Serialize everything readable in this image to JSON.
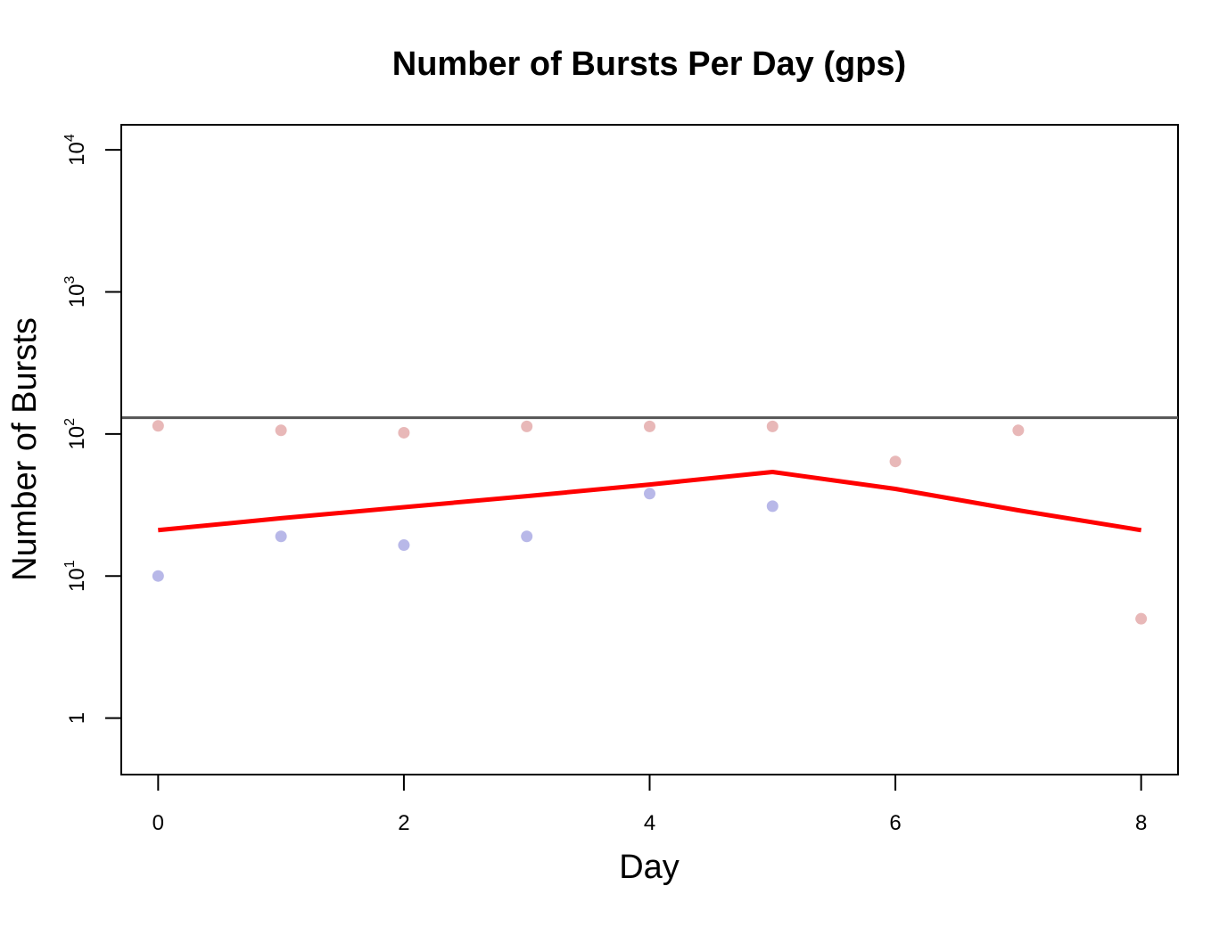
{
  "chart_data": {
    "type": "line",
    "title": "Number of Bursts Per Day (gps)",
    "xlabel": "Day",
    "ylabel": "Number of Bursts",
    "y_scale": "log",
    "xlim": [
      -0.3,
      8.3
    ],
    "ylim": [
      0.4,
      15000
    ],
    "x_ticks": [
      0,
      2,
      4,
      6,
      8
    ],
    "y_ticks": [
      {
        "value": 1,
        "base": "1",
        "exp": ""
      },
      {
        "value": 10,
        "base": "10",
        "exp": "1"
      },
      {
        "value": 100,
        "base": "10",
        "exp": "2"
      },
      {
        "value": 1000,
        "base": "10",
        "exp": "3"
      },
      {
        "value": 10000,
        "base": "10",
        "exp": "4"
      }
    ],
    "grid": false,
    "legend": "none",
    "reference_line": {
      "y": 130,
      "color": "#555555"
    },
    "series": [
      {
        "kind": "points",
        "color": "#e8b8b8",
        "x": [
          0,
          1,
          2,
          3,
          4,
          5,
          6,
          7,
          8
        ],
        "y": [
          114,
          106,
          102,
          113,
          113,
          113,
          64,
          106,
          5
        ]
      },
      {
        "kind": "points",
        "color": "#b8b8e8",
        "x": [
          0,
          1,
          2,
          3,
          4,
          5
        ],
        "y": [
          10,
          19,
          16.5,
          19,
          38,
          31
        ]
      },
      {
        "kind": "line",
        "color": "#ff0000",
        "x": [
          0,
          1,
          2,
          3,
          4,
          5,
          6,
          7,
          8
        ],
        "y": [
          21,
          25.5,
          30.5,
          36.5,
          44,
          54,
          41,
          29,
          21
        ]
      }
    ]
  }
}
